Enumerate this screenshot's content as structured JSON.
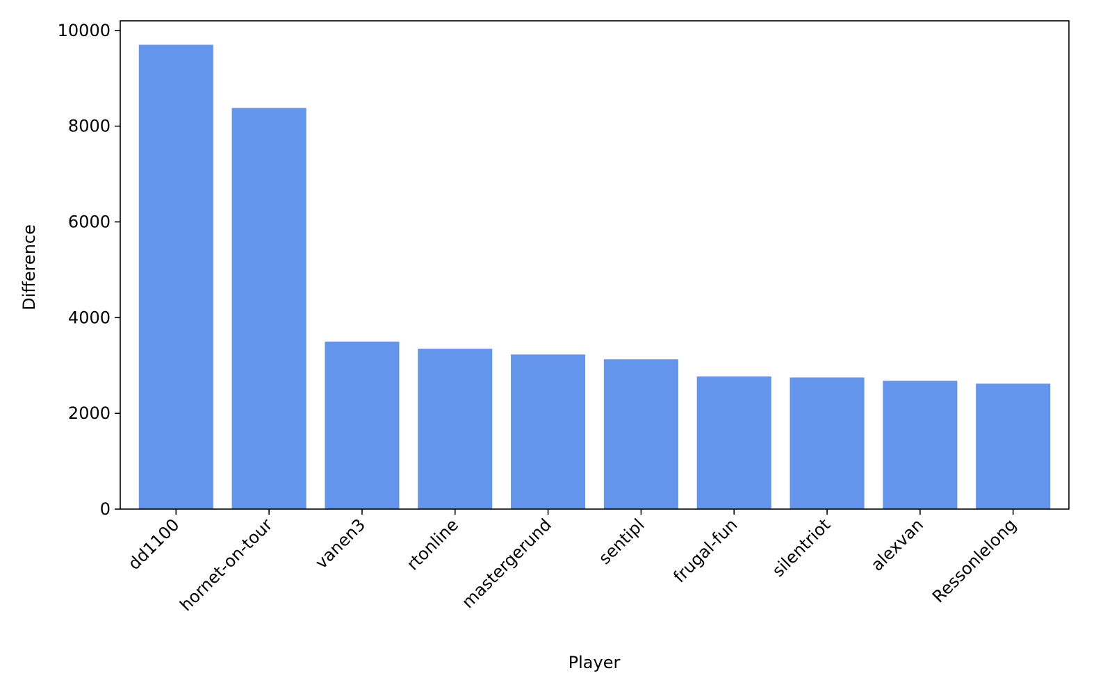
{
  "colors": {
    "bar": "#6495ed",
    "axis": "#000000",
    "background": "#ffffff"
  },
  "chart_data": {
    "type": "bar",
    "title": "",
    "xlabel": "Player",
    "ylabel": "Difference",
    "ylim": [
      0,
      10200
    ],
    "yticks": [
      0,
      2000,
      4000,
      6000,
      8000,
      10000
    ],
    "ytick_labels": [
      "0",
      "2000",
      "4000",
      "6000",
      "8000",
      "10000"
    ],
    "grid": false,
    "categories": [
      "dd1100",
      "hornet-on-tour",
      "vanen3",
      "rtonline",
      "mastergerund",
      "sentipl",
      "frugal-fun",
      "silentriot",
      "alexvan",
      "Ressonlelong"
    ],
    "values": [
      9700,
      8380,
      3500,
      3350,
      3230,
      3130,
      2770,
      2750,
      2680,
      2620
    ]
  }
}
